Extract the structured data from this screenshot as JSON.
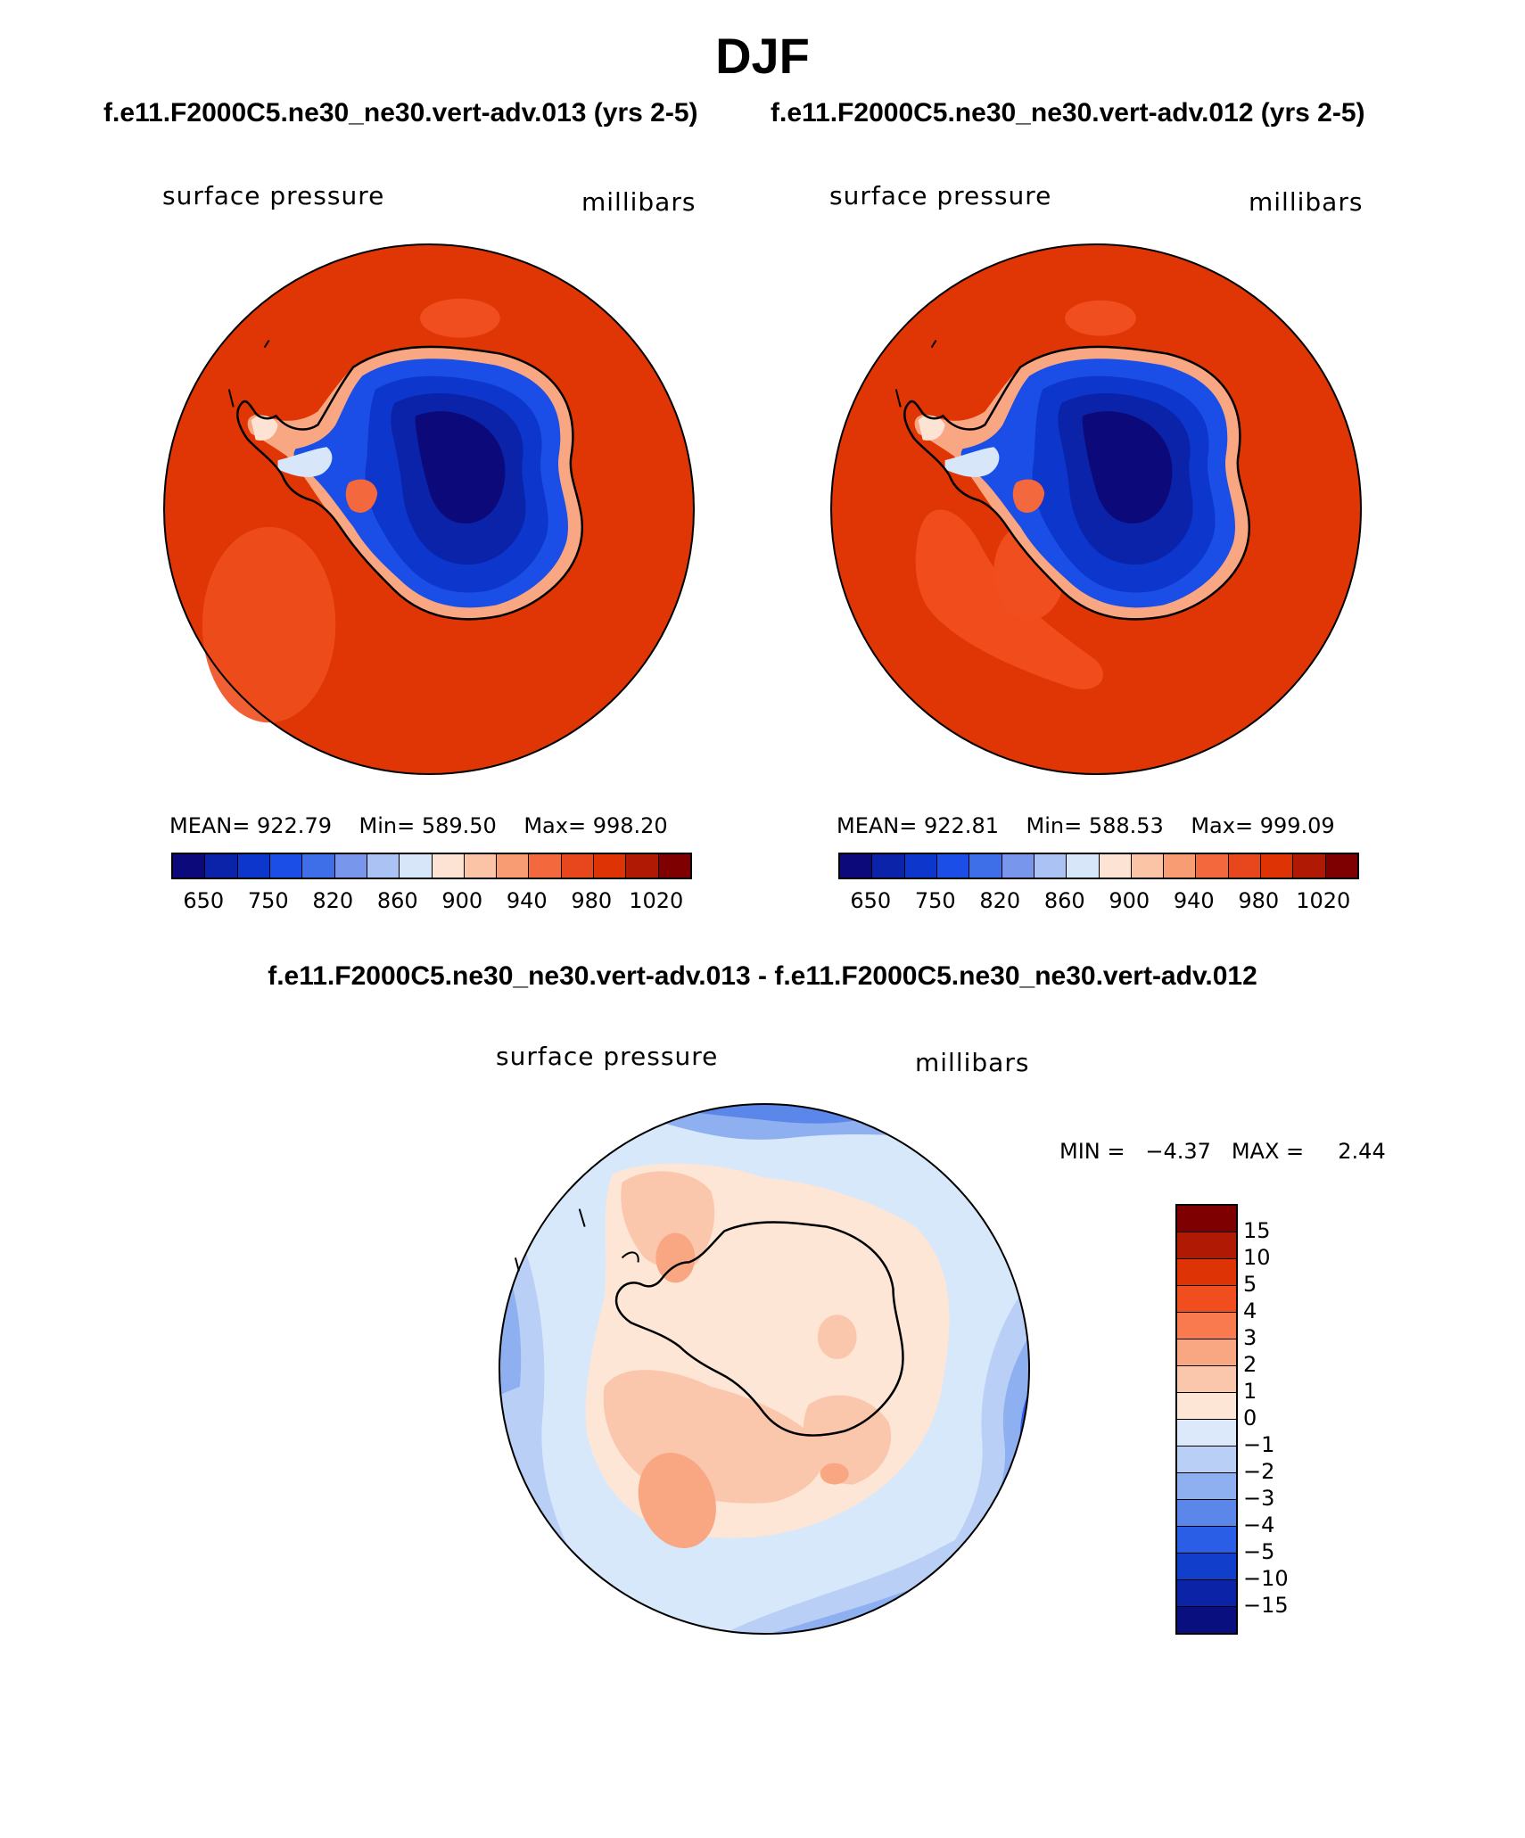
{
  "season_title": "DJF",
  "subtitle_left": "f.e11.F2000C5.ne30_ne30.vert-adv.013 (yrs 2-5)",
  "subtitle_right": "f.e11.F2000C5.ne30_ne30.vert-adv.012 (yrs 2-5)",
  "diff_title": "f.e11.F2000C5.ne30_ne30.vert-adv.013 - f.e11.F2000C5.ne30_ne30.vert-adv.012",
  "panels": {
    "left": {
      "variable": "surface pressure",
      "units": "millibars",
      "mean_label": "MEAN=",
      "mean": "922.79",
      "min_label": "Min=",
      "min": "589.50",
      "max_label": "Max=",
      "max": "998.20"
    },
    "right": {
      "variable": "surface pressure",
      "units": "millibars",
      "mean_label": "MEAN=",
      "mean": "922.81",
      "min_label": "Min=",
      "min": "588.53",
      "max_label": "Max=",
      "max": "999.09"
    },
    "diff": {
      "variable": "surface pressure",
      "units": "millibars",
      "min_label": "MIN =",
      "min": "−4.37",
      "max_label": "MAX =",
      "max": "2.44"
    }
  },
  "colorbar_main": {
    "ticks": [
      "650",
      "750",
      "820",
      "860",
      "900",
      "940",
      "980",
      "1020"
    ],
    "colors": [
      "#0c0a7a",
      "#0a23a8",
      "#0c36cc",
      "#1a4ee6",
      "#3f6fe8",
      "#7796ec",
      "#abc2f4",
      "#d8e6fa",
      "#fde3d3",
      "#fbc4a6",
      "#f89c74",
      "#f4683e",
      "#e8461c",
      "#dd3305",
      "#b01a05",
      "#7f0000"
    ]
  },
  "colorbar_diff": {
    "ticks": [
      "15",
      "10",
      "5",
      "4",
      "3",
      "2",
      "1",
      "0",
      "−1",
      "−2",
      "−3",
      "−4",
      "−5",
      "−10",
      "−15"
    ],
    "colors": [
      "#7f0000",
      "#b01a05",
      "#dd3305",
      "#f04e1e",
      "#f87a4e",
      "#f9a682",
      "#fbc7ac",
      "#fde6d6",
      "#dbe9fb",
      "#b9cff6",
      "#8fb0f0",
      "#5b86ea",
      "#2b5ee6",
      "#123ecc",
      "#0b23a6",
      "#0a0f80"
    ]
  },
  "map_colors": {
    "ocean_main": "#e03504",
    "ocean_diff": "#d8e8fb",
    "coast": "#000000"
  }
}
